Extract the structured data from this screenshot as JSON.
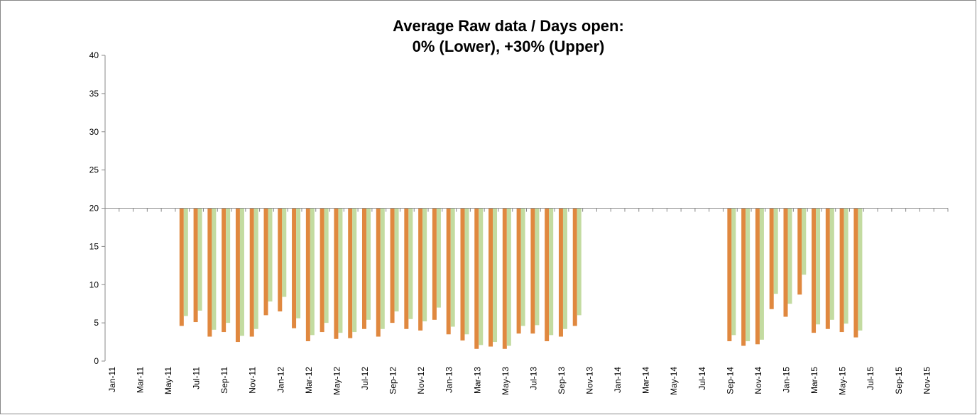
{
  "chart_data": {
    "type": "bar",
    "title": [
      "Average Raw data / Days open:",
      "0% (Lower), +30% (Upper)"
    ],
    "categories": [
      "Jan-11",
      null,
      "Mar-11",
      null,
      "May-11",
      null,
      "Jul-11",
      null,
      "Sep-11",
      null,
      "Nov-11",
      null,
      "Jan-12",
      null,
      "Mar-12",
      null,
      "May-12",
      null,
      "Jul-12",
      null,
      "Sep-12",
      null,
      "Nov-12",
      null,
      "Jan-13",
      null,
      "Mar-13",
      null,
      "May-13",
      null,
      "Jul-13",
      null,
      "Sep-13",
      null,
      "Nov-13",
      null,
      "Jan-14",
      null,
      "Mar-14",
      null,
      "May-14",
      null,
      "Jul-14",
      null,
      "Sep-14",
      null,
      "Nov-14",
      null,
      "Jan-15",
      null,
      "Mar-15",
      null,
      "May-15",
      null,
      "Jul-15",
      null,
      "Sep-15",
      null,
      "Nov-15",
      null
    ],
    "series": [
      {
        "color": "#e0883f",
        "values": [
          null,
          null,
          null,
          null,
          null,
          4.6,
          5.1,
          3.2,
          3.8,
          2.5,
          3.2,
          6.0,
          6.5,
          4.3,
          2.6,
          3.8,
          2.9,
          3.0,
          4.2,
          3.2,
          5.0,
          4.2,
          4.0,
          5.4,
          3.5,
          2.7,
          1.6,
          1.9,
          1.6,
          3.6,
          3.6,
          2.6,
          3.2,
          4.6,
          null,
          null,
          null,
          null,
          null,
          null,
          null,
          null,
          null,
          null,
          2.6,
          2.0,
          2.2,
          6.8,
          5.8,
          8.7,
          3.7,
          4.2,
          3.8,
          3.1,
          null,
          null,
          null,
          null,
          null,
          null
        ]
      },
      {
        "color": "#c3dba0",
        "values": [
          null,
          null,
          null,
          null,
          null,
          5.9,
          6.6,
          4.1,
          5.0,
          3.3,
          4.2,
          7.8,
          8.4,
          5.6,
          3.4,
          5.0,
          3.7,
          3.8,
          5.4,
          4.2,
          6.5,
          5.5,
          5.2,
          7.0,
          4.5,
          3.5,
          2.1,
          2.5,
          2.0,
          4.6,
          4.7,
          3.4,
          4.2,
          6.0,
          null,
          null,
          null,
          null,
          null,
          null,
          null,
          null,
          null,
          null,
          3.4,
          2.6,
          2.8,
          8.8,
          7.5,
          11.3,
          4.8,
          5.4,
          4.9,
          4.0,
          null,
          null,
          null,
          null,
          null,
          null
        ]
      }
    ],
    "base": 20,
    "ylim": [
      0,
      40
    ],
    "yticks": [
      0,
      5,
      10,
      15,
      20,
      25,
      30,
      35,
      40
    ],
    "grid": false
  }
}
